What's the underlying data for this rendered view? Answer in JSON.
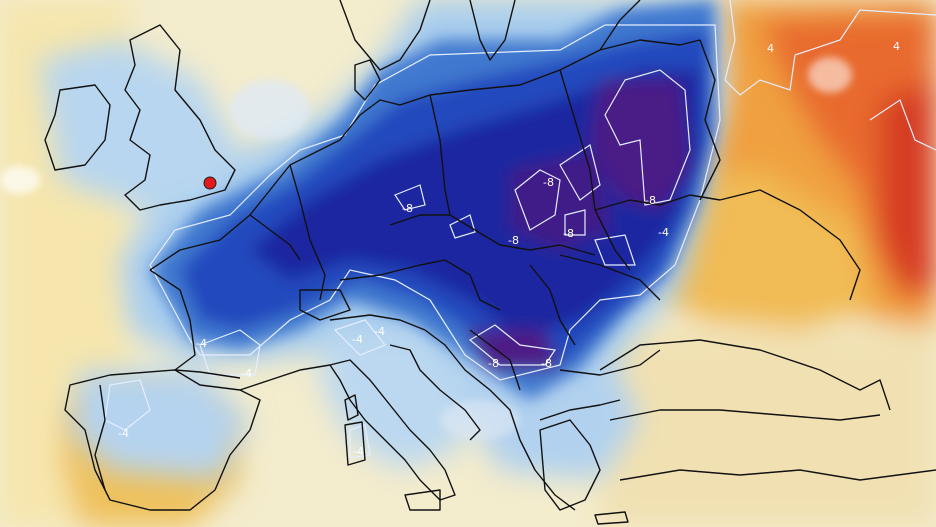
{
  "map": {
    "type": "temperature-anomaly-map",
    "region": "Europe",
    "colors": {
      "very_cold": "#3b0a6e",
      "deep_blue": "#1a1f8f",
      "strong_blue": "#2453c8",
      "mid_blue": "#4f8fd6",
      "light_blue": "#a9cfee",
      "pale": "#f2f4f4",
      "pale_yellow": "#f6e9b8",
      "yellow_orange": "#f1b85a",
      "orange": "#f08a2a",
      "red_orange": "#e2542a",
      "red": "#cd2e1e",
      "contour": "#dfe9ff",
      "border": "#111111"
    },
    "marker": {
      "color": "#e01b1b"
    },
    "contour_labels": [
      {
        "name": "label-minus8-germany",
        "text": "-8"
      },
      {
        "name": "label-minus8-poland-east",
        "text": "-8"
      },
      {
        "name": "label-minus8-belarus",
        "text": "-8"
      },
      {
        "name": "label-minus8-czech",
        "text": "-8"
      },
      {
        "name": "label-minus8-carpathians",
        "text": "-8"
      },
      {
        "name": "label-minus8-balkans",
        "text": "-8"
      },
      {
        "name": "label-minus8-serbia",
        "text": "-8"
      },
      {
        "name": "label-minus4-ukraine-border",
        "text": "-4"
      },
      {
        "name": "label-minus4-france-south",
        "text": "-4"
      },
      {
        "name": "label-minus4-pyrenees",
        "text": "-4"
      },
      {
        "name": "label-minus4-alps",
        "text": "-4"
      },
      {
        "name": "label-minus4-italy-north",
        "text": "-4"
      },
      {
        "name": "label-minus4-iberia",
        "text": "-4"
      },
      {
        "name": "label-minus4-sardinia",
        "text": "-4"
      },
      {
        "name": "label-4-russia-west",
        "text": "4"
      },
      {
        "name": "label-4-russia-northeast",
        "text": "4"
      }
    ]
  }
}
